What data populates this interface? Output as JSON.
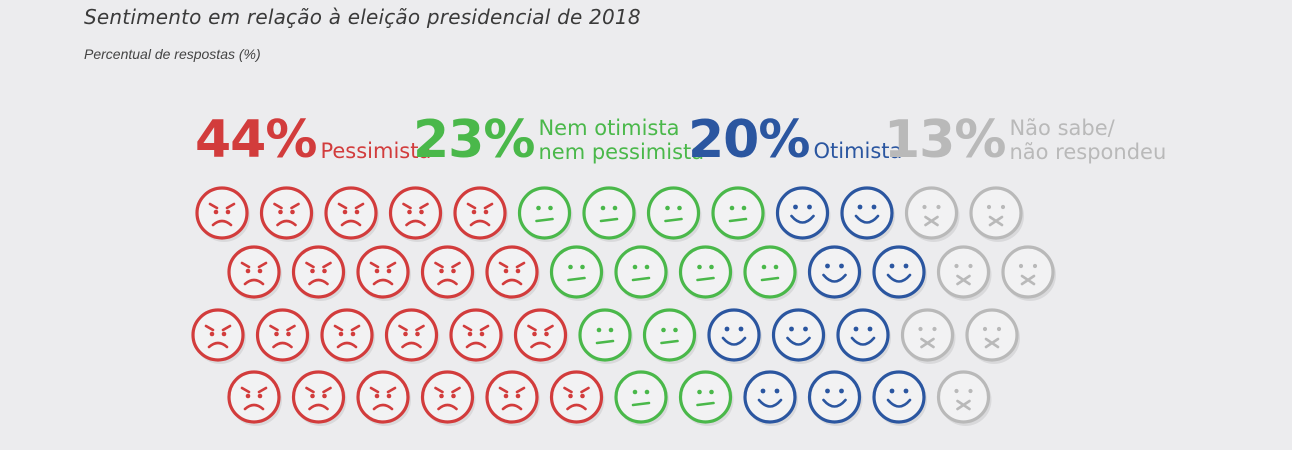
{
  "header": {
    "title": "Sentimento em relação à eleição presidencial de 2018",
    "subtitle": "Percentual de respostas (%)"
  },
  "colors": {
    "pessimista": "#d23c3c",
    "neutro": "#4ab84a",
    "otimista": "#2b56a0",
    "nao_sabe": "#b9b9b9"
  },
  "chart_data": {
    "type": "pictogram",
    "title": "Sentimento em relação à eleição presidencial de 2018",
    "unit": "Percentual de respostas (%)",
    "categories": [
      {
        "key": "pessimista",
        "percent": 44,
        "pct_label": "44%",
        "label_lines": [
          "Pessimista"
        ],
        "icon": "sad-face-icon",
        "count": 22
      },
      {
        "key": "neutro",
        "percent": 23,
        "pct_label": "23%",
        "label_lines": [
          "Nem otimista",
          "nem pessimista"
        ],
        "icon": "neutral-face-icon",
        "count": 12
      },
      {
        "key": "otimista",
        "percent": 20,
        "pct_label": "20%",
        "label_lines": [
          "Otimista"
        ],
        "icon": "smiling-face-icon",
        "count": 10
      },
      {
        "key": "nao_sabe",
        "percent": 13,
        "pct_label": "13%",
        "label_lines": [
          "Não sabe/",
          "não respondeu"
        ],
        "icon": "crossed-mouth-face-icon",
        "count": 7
      }
    ],
    "rows": [
      [
        "pessimista",
        "pessimista",
        "pessimista",
        "pessimista",
        "pessimista",
        "neutro",
        "neutro",
        "neutro",
        "neutro",
        "otimista",
        "otimista",
        "nao_sabe",
        "nao_sabe"
      ],
      [
        "pessimista",
        "pessimista",
        "pessimista",
        "pessimista",
        "pessimista",
        "neutro",
        "neutro",
        "neutro",
        "neutro",
        "otimista",
        "otimista",
        "nao_sabe",
        "nao_sabe"
      ],
      [
        "pessimista",
        "pessimista",
        "pessimista",
        "pessimista",
        "pessimista",
        "pessimista",
        "neutro",
        "neutro",
        "otimista",
        "otimista",
        "otimista",
        "nao_sabe",
        "nao_sabe"
      ],
      [
        "pessimista",
        "pessimista",
        "pessimista",
        "pessimista",
        "pessimista",
        "pessimista",
        "neutro",
        "neutro",
        "otimista",
        "otimista",
        "otimista",
        "nao_sabe"
      ]
    ]
  }
}
